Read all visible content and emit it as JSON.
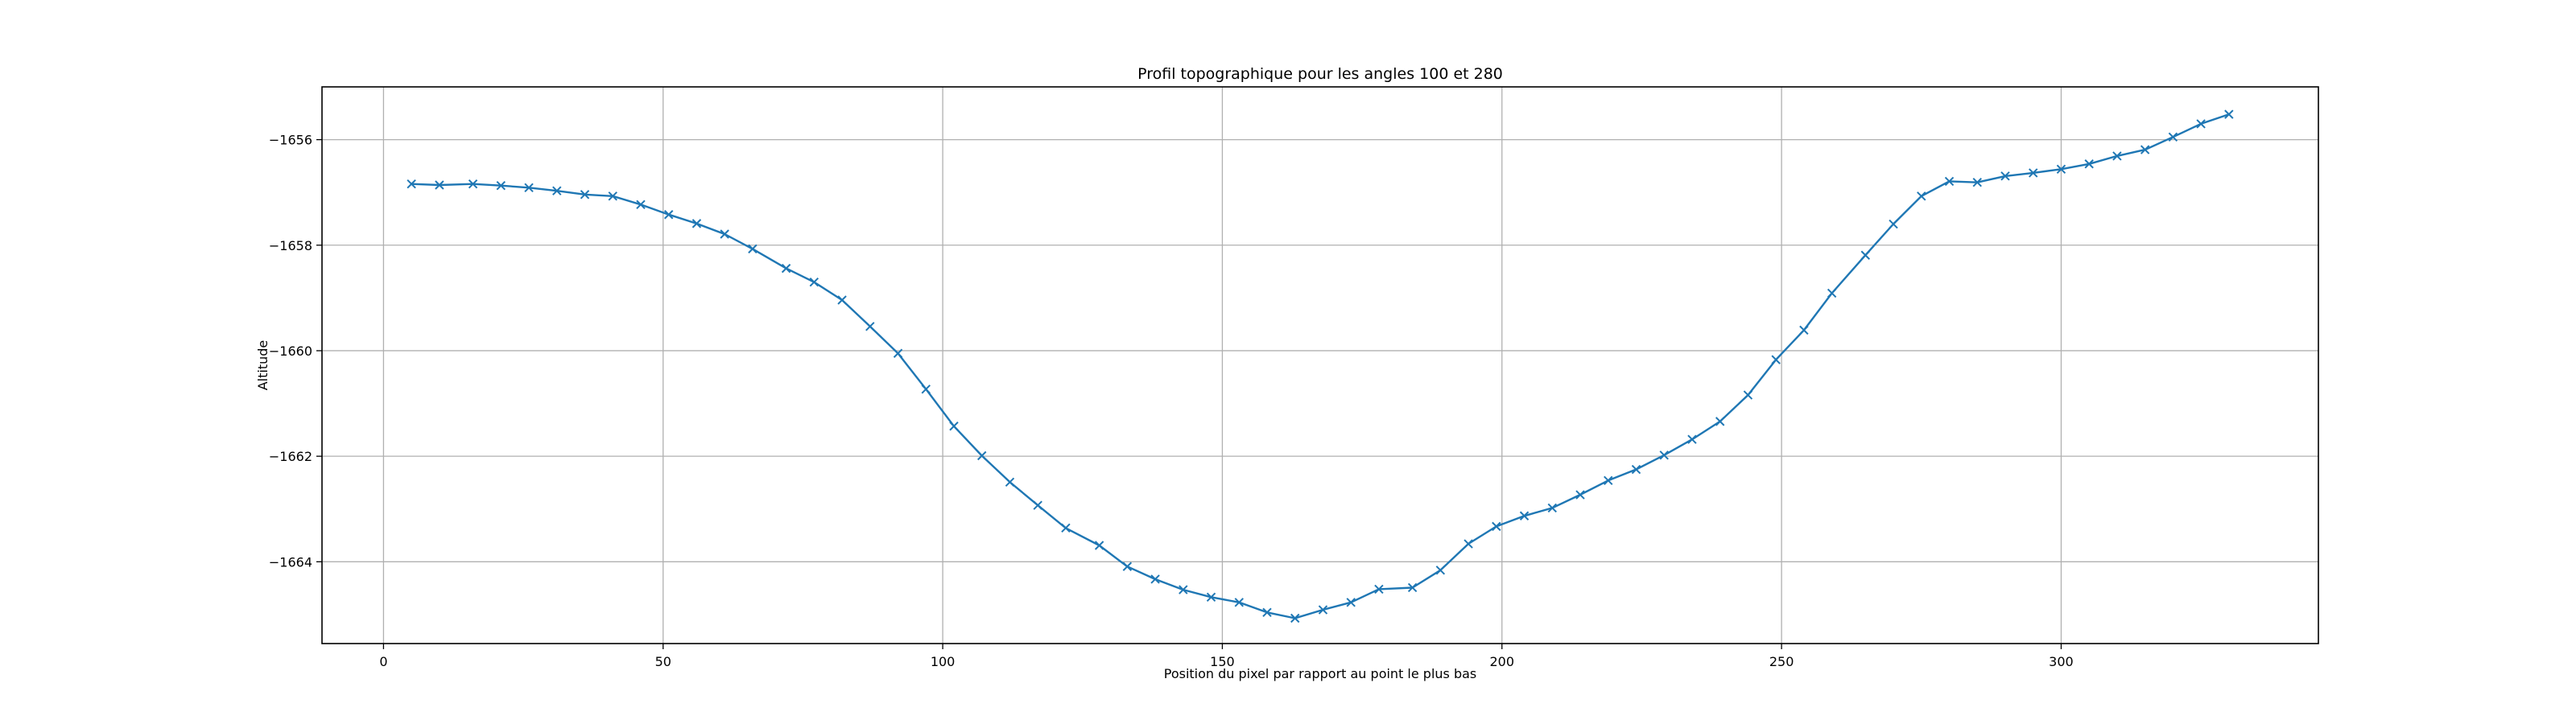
{
  "chart_data": {
    "type": "line",
    "title": "Profil topographique pour les angles 100 et 280",
    "xlabel": "Position du pixel par rapport au point le plus bas",
    "ylabel": "Altitude",
    "xlim": [
      -11,
      346
    ],
    "ylim": [
      -1665.55,
      -1655.0
    ],
    "xticks": [
      0,
      50,
      100,
      150,
      200,
      250,
      300
    ],
    "yticks": [
      -1656,
      -1658,
      -1660,
      -1662,
      -1664
    ],
    "ytick_labels": [
      "−1656",
      "−1658",
      "−1660",
      "−1662",
      "−1664"
    ],
    "grid": true,
    "marker": "x",
    "color": "#1f77b4",
    "series": [
      {
        "x": [
          5,
          10,
          16,
          21,
          26,
          31,
          36,
          41,
          46,
          51,
          56,
          61,
          66,
          72,
          77,
          82,
          87,
          92,
          97,
          102,
          107,
          112,
          117,
          122,
          128,
          133,
          138,
          143,
          148,
          153,
          158,
          163,
          168,
          173,
          178,
          184,
          189,
          194,
          199,
          204,
          209,
          214,
          219,
          224,
          229,
          234,
          239,
          244,
          249,
          254,
          259,
          265,
          270,
          275,
          280,
          285,
          290,
          295,
          300,
          305,
          310,
          315,
          320,
          325,
          330
        ],
        "y": [
          -1656.84,
          -1656.86,
          -1656.84,
          -1656.87,
          -1656.91,
          -1656.97,
          -1657.04,
          -1657.07,
          -1657.23,
          -1657.42,
          -1657.59,
          -1657.79,
          -1658.07,
          -1658.44,
          -1658.7,
          -1659.04,
          -1659.54,
          -1660.05,
          -1660.73,
          -1661.43,
          -1661.99,
          -1662.49,
          -1662.93,
          -1663.36,
          -1663.69,
          -1664.09,
          -1664.33,
          -1664.53,
          -1664.67,
          -1664.77,
          -1664.96,
          -1665.07,
          -1664.91,
          -1664.77,
          -1664.52,
          -1664.49,
          -1664.16,
          -1663.66,
          -1663.33,
          -1663.13,
          -1662.98,
          -1662.73,
          -1662.46,
          -1662.25,
          -1661.98,
          -1661.68,
          -1661.34,
          -1660.84,
          -1660.17,
          -1659.61,
          -1658.91,
          -1658.19,
          -1657.6,
          -1657.07,
          -1656.79,
          -1656.81,
          -1656.69,
          -1656.63,
          -1656.56,
          -1656.46,
          -1656.31,
          -1656.19,
          -1655.95,
          -1655.7,
          -1655.52
        ]
      }
    ]
  }
}
